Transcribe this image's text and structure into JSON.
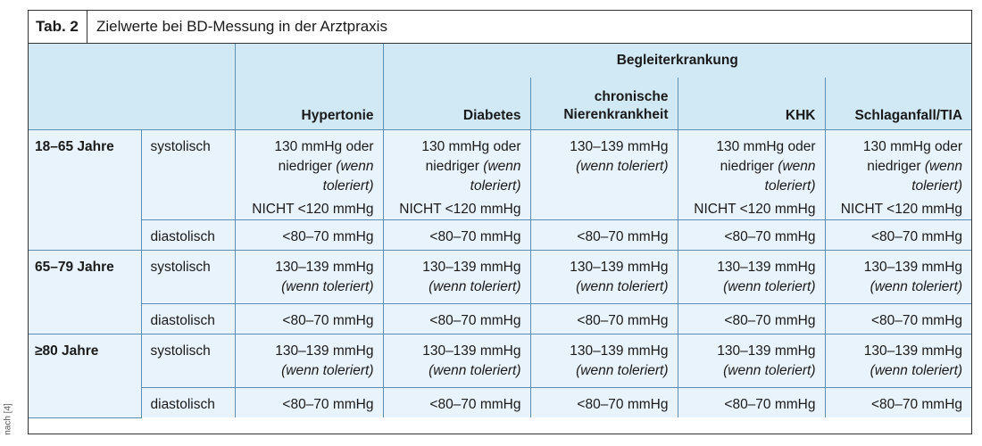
{
  "side_note": "nach [4]",
  "table": {
    "tab_label": "Tab. 2",
    "title": "Zielwerte bei BD-Messung in der Arztpraxis",
    "group_header": "Begleiterkrankung",
    "columns": [
      "Hypertonie",
      "Diabetes",
      "chronische Nierenkrankheit",
      "KHK",
      "Schlaganfall/TIA"
    ],
    "cells": {
      "age_18_65": "18–65 Jahre",
      "age_65_79": "65–79 Jahre",
      "age_80": "≥80 Jahre",
      "systolisch": "systolisch",
      "diastolisch": "diastolisch",
      "v130_oder": "130 mmHg oder",
      "niedriger": "niedriger",
      "wenn": "(wenn",
      "toleriert": "toleriert)",
      "nicht120": "NICHT <120 mmHg",
      "r130_139": "130–139 mmHg",
      "wenn_toleriert": "(wenn toleriert)",
      "dia": "<80–70 mmHg"
    }
  }
}
